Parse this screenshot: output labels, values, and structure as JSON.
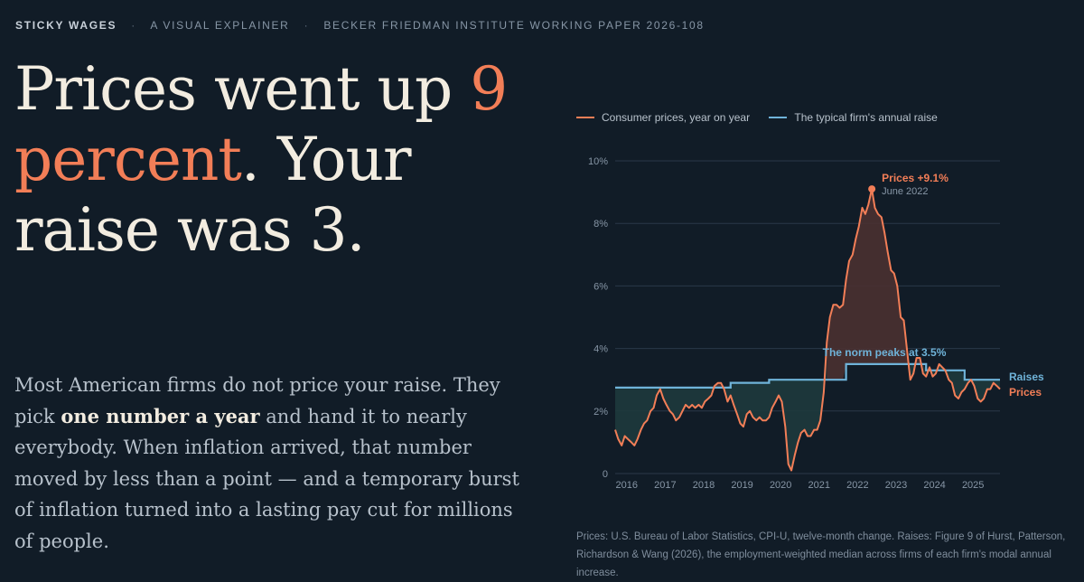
{
  "topbar": {
    "brand": "STICKY WAGES",
    "subtitle": "A VISUAL EXPLAINER",
    "paper": "BECKER FRIEDMAN INSTITUTE WORKING PAPER 2026-108"
  },
  "headline": {
    "part1": "Prices went up ",
    "accent": "9 percent",
    "part2": ". Your raise was 3."
  },
  "lede": {
    "before": "Most American firms do not price your raise. They pick ",
    "strong": "one number a year",
    "after": " and hand it to nearly everybody. When inflation arrived, that number moved by less than a point — and a temporary burst of inflation turned into a lasting pay cut for millions of people."
  },
  "source": "Prices: U.S. Bureau of Labor Statistics, CPI-U, twelve-month change. Raises: Figure 9 of Hurst, Patterson, Richardson & Wang (2026), the employment-weighted median across firms of each firm's modal annual increase.",
  "colors": {
    "prices": "#f27e57",
    "raises": "#6fb3d9",
    "prices_fill": "#4a3131",
    "raises_fill": "#1e3a3d",
    "grid": "#2a3848",
    "tick": "#8796a6"
  },
  "chart_data": {
    "type": "line",
    "xlabel": "",
    "ylabel": "",
    "xlim": [
      2015.75,
      2025.75
    ],
    "ylim": [
      0,
      10
    ],
    "yticks": [
      0,
      2,
      4,
      6,
      8,
      10
    ],
    "ytick_labels": [
      "0",
      "2%",
      "4%",
      "6%",
      "8%",
      "10%"
    ],
    "xticks": [
      2016,
      2017,
      2018,
      2019,
      2020,
      2021,
      2022,
      2023,
      2024,
      2025
    ],
    "xtick_labels": [
      "2016",
      "2017",
      "2018",
      "2019",
      "2020",
      "2021",
      "2022",
      "2023",
      "2024",
      "2025"
    ],
    "grid": true,
    "legend": "top-left",
    "series": [
      {
        "name": "Consumer prices, year on year",
        "end_label": "Prices",
        "points": [
          [
            2015.75,
            1.4
          ],
          [
            2015.83,
            1.1
          ],
          [
            2015.92,
            0.9
          ],
          [
            2016.0,
            1.2
          ],
          [
            2016.08,
            1.1
          ],
          [
            2016.17,
            1.0
          ],
          [
            2016.25,
            0.9
          ],
          [
            2016.33,
            1.1
          ],
          [
            2016.42,
            1.4
          ],
          [
            2016.5,
            1.6
          ],
          [
            2016.58,
            1.7
          ],
          [
            2016.67,
            2.0
          ],
          [
            2016.75,
            2.1
          ],
          [
            2016.83,
            2.5
          ],
          [
            2016.92,
            2.7
          ],
          [
            2017.0,
            2.4
          ],
          [
            2017.08,
            2.2
          ],
          [
            2017.17,
            2.0
          ],
          [
            2017.25,
            1.9
          ],
          [
            2017.33,
            1.7
          ],
          [
            2017.42,
            1.8
          ],
          [
            2017.5,
            2.0
          ],
          [
            2017.58,
            2.2
          ],
          [
            2017.67,
            2.1
          ],
          [
            2017.75,
            2.2
          ],
          [
            2017.83,
            2.1
          ],
          [
            2017.92,
            2.2
          ],
          [
            2018.0,
            2.1
          ],
          [
            2018.08,
            2.3
          ],
          [
            2018.17,
            2.4
          ],
          [
            2018.25,
            2.5
          ],
          [
            2018.33,
            2.8
          ],
          [
            2018.42,
            2.9
          ],
          [
            2018.5,
            2.9
          ],
          [
            2018.58,
            2.7
          ],
          [
            2018.67,
            2.3
          ],
          [
            2018.75,
            2.5
          ],
          [
            2018.83,
            2.2
          ],
          [
            2018.92,
            1.9
          ],
          [
            2019.0,
            1.6
          ],
          [
            2019.08,
            1.5
          ],
          [
            2019.17,
            1.9
          ],
          [
            2019.25,
            2.0
          ],
          [
            2019.33,
            1.8
          ],
          [
            2019.42,
            1.7
          ],
          [
            2019.5,
            1.8
          ],
          [
            2019.58,
            1.7
          ],
          [
            2019.67,
            1.7
          ],
          [
            2019.75,
            1.8
          ],
          [
            2019.83,
            2.1
          ],
          [
            2019.92,
            2.3
          ],
          [
            2020.0,
            2.5
          ],
          [
            2020.08,
            2.3
          ],
          [
            2020.17,
            1.5
          ],
          [
            2020.25,
            0.3
          ],
          [
            2020.33,
            0.1
          ],
          [
            2020.42,
            0.6
          ],
          [
            2020.5,
            1.0
          ],
          [
            2020.58,
            1.3
          ],
          [
            2020.67,
            1.4
          ],
          [
            2020.75,
            1.2
          ],
          [
            2020.83,
            1.2
          ],
          [
            2020.92,
            1.4
          ],
          [
            2021.0,
            1.4
          ],
          [
            2021.08,
            1.7
          ],
          [
            2021.17,
            2.6
          ],
          [
            2021.25,
            4.2
          ],
          [
            2021.33,
            5.0
          ],
          [
            2021.42,
            5.4
          ],
          [
            2021.5,
            5.4
          ],
          [
            2021.58,
            5.3
          ],
          [
            2021.67,
            5.4
          ],
          [
            2021.75,
            6.2
          ],
          [
            2021.83,
            6.8
          ],
          [
            2021.92,
            7.0
          ],
          [
            2022.0,
            7.5
          ],
          [
            2022.08,
            7.9
          ],
          [
            2022.17,
            8.5
          ],
          [
            2022.25,
            8.3
          ],
          [
            2022.33,
            8.6
          ],
          [
            2022.42,
            9.1
          ],
          [
            2022.5,
            8.5
          ],
          [
            2022.58,
            8.3
          ],
          [
            2022.67,
            8.2
          ],
          [
            2022.75,
            7.7
          ],
          [
            2022.83,
            7.1
          ],
          [
            2022.92,
            6.5
          ],
          [
            2023.0,
            6.4
          ],
          [
            2023.08,
            6.0
          ],
          [
            2023.17,
            5.0
          ],
          [
            2023.25,
            4.9
          ],
          [
            2023.33,
            4.0
          ],
          [
            2023.42,
            3.0
          ],
          [
            2023.5,
            3.2
          ],
          [
            2023.58,
            3.7
          ],
          [
            2023.67,
            3.7
          ],
          [
            2023.75,
            3.2
          ],
          [
            2023.83,
            3.1
          ],
          [
            2023.92,
            3.4
          ],
          [
            2024.0,
            3.1
          ],
          [
            2024.08,
            3.2
          ],
          [
            2024.17,
            3.5
          ],
          [
            2024.25,
            3.4
          ],
          [
            2024.33,
            3.3
          ],
          [
            2024.42,
            3.0
          ],
          [
            2024.5,
            2.9
          ],
          [
            2024.58,
            2.5
          ],
          [
            2024.67,
            2.4
          ],
          [
            2024.75,
            2.6
          ],
          [
            2024.83,
            2.7
          ],
          [
            2024.92,
            2.9
          ],
          [
            2025.0,
            3.0
          ],
          [
            2025.08,
            2.8
          ],
          [
            2025.17,
            2.4
          ],
          [
            2025.25,
            2.3
          ],
          [
            2025.33,
            2.4
          ],
          [
            2025.42,
            2.7
          ],
          [
            2025.5,
            2.7
          ],
          [
            2025.58,
            2.9
          ],
          [
            2025.67,
            2.8
          ],
          [
            2025.75,
            2.7
          ]
        ]
      },
      {
        "name": "The typical firm's annual raise",
        "end_label": "Raises",
        "step": true,
        "points": [
          [
            2015.75,
            2.75
          ],
          [
            2018.75,
            2.9
          ],
          [
            2019.75,
            3.0
          ],
          [
            2021.0,
            3.0
          ],
          [
            2021.75,
            3.5
          ],
          [
            2023.83,
            3.3
          ],
          [
            2024.83,
            3.0
          ],
          [
            2025.75,
            3.0
          ]
        ]
      }
    ],
    "annotations": [
      {
        "text": "Prices +9.1%",
        "sub": "June 2022",
        "x": 2022.42,
        "y": 9.1
      },
      {
        "text": "The norm peaks at 3.5%",
        "x": 2022.5,
        "y": 3.5
      }
    ]
  }
}
